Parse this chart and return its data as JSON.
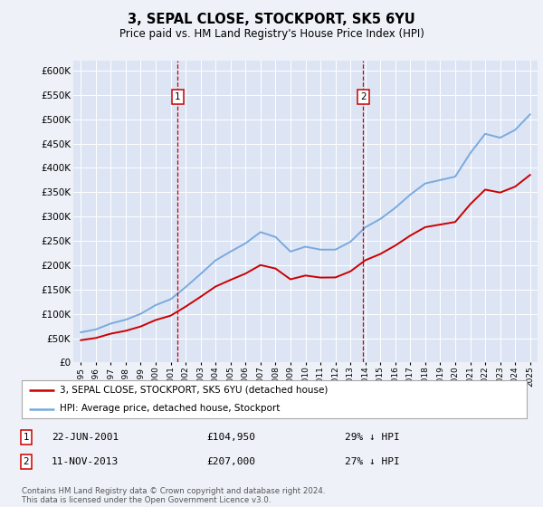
{
  "title": "3, SEPAL CLOSE, STOCKPORT, SK5 6YU",
  "subtitle": "Price paid vs. HM Land Registry's House Price Index (HPI)",
  "background_color": "#eef2f8",
  "plot_bg_color": "#dde5f5",
  "hpi_years": [
    1995,
    1996,
    1997,
    1998,
    1999,
    2000,
    2001,
    2002,
    2003,
    2004,
    2005,
    2006,
    2007,
    2008,
    2009,
    2010,
    2011,
    2012,
    2013,
    2014,
    2015,
    2016,
    2017,
    2018,
    2019,
    2020,
    2021,
    2022,
    2023,
    2024,
    2025
  ],
  "hpi_values": [
    62000,
    68000,
    80000,
    88000,
    100000,
    118000,
    130000,
    155000,
    182000,
    210000,
    228000,
    245000,
    268000,
    258000,
    228000,
    238000,
    232000,
    232000,
    248000,
    278000,
    295000,
    318000,
    345000,
    368000,
    375000,
    382000,
    430000,
    470000,
    462000,
    478000,
    510000
  ],
  "sale1_year": 2001.47,
  "sale1_price": 104950,
  "sale2_year": 2013.86,
  "sale2_price": 207000,
  "sale1_date": "22-JUN-2001",
  "sale2_date": "11-NOV-2013",
  "sale1_note": "29% ↓ HPI",
  "sale2_note": "27% ↓ HPI",
  "hpi_color": "#7aaadd",
  "sale_line_color": "#cc0000",
  "vline_color": "#cc0000",
  "legend1": "3, SEPAL CLOSE, STOCKPORT, SK5 6YU (detached house)",
  "legend2": "HPI: Average price, detached house, Stockport",
  "footer": "Contains HM Land Registry data © Crown copyright and database right 2024.\nThis data is licensed under the Open Government Licence v3.0.",
  "ylim_min": 0,
  "ylim_max": 620000,
  "xlim_min": 1994.5,
  "xlim_max": 2025.5
}
